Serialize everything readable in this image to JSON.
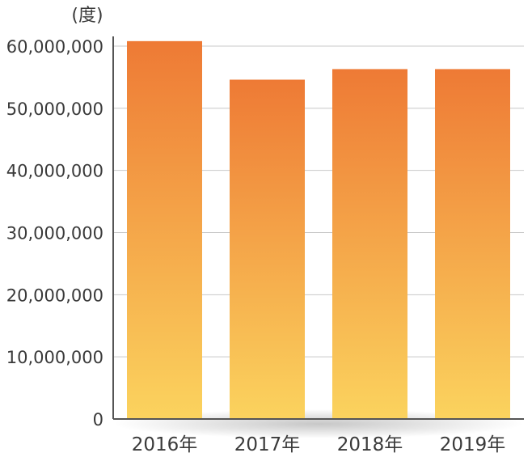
{
  "chart_data": {
    "type": "bar",
    "unit": "(度)",
    "categories": [
      "2016年",
      "2017年",
      "2018年",
      "2019年"
    ],
    "values": [
      60800000,
      54600000,
      56300000,
      56300000
    ],
    "ylim": [
      0,
      60000000
    ],
    "yticks": [
      0,
      10000000,
      20000000,
      30000000,
      40000000,
      50000000,
      60000000
    ],
    "ytick_labels": [
      "0",
      "10,000,000",
      "20,000,000",
      "30,000,000",
      "40,000,000",
      "50,000,000",
      "60,000,000"
    ],
    "grid": true,
    "legend": false,
    "colors": {
      "bar_top": "#ee7a35",
      "bar_bottom": "#fbd35e",
      "grid": "#c8c8c8",
      "axis": "#555555"
    }
  }
}
